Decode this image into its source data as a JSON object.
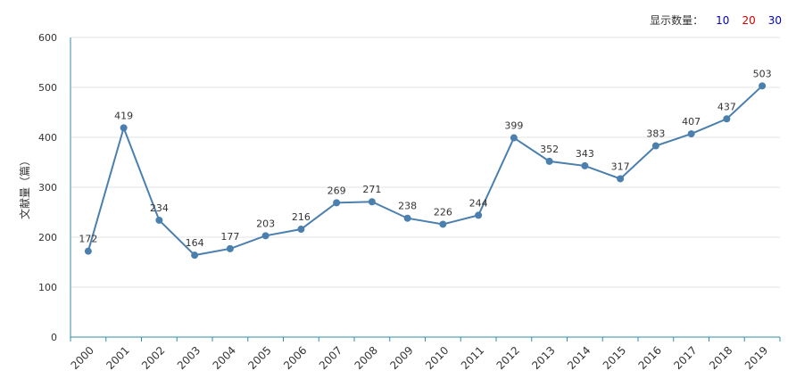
{
  "controls": {
    "label": "显示数量：",
    "options": [
      {
        "label": "10",
        "color": "#0000cc"
      },
      {
        "label": "20",
        "color": "#cc0000"
      },
      {
        "label": "30",
        "color": "#0000cc"
      }
    ]
  },
  "chart_data": {
    "type": "line",
    "ylabel": "文献量（篇）",
    "xlabel": "",
    "title": "",
    "ylim": [
      0,
      600
    ],
    "yticks": [
      0,
      100,
      200,
      300,
      400,
      500,
      600
    ],
    "categories": [
      "2000",
      "2001",
      "2002",
      "2003",
      "2004",
      "2005",
      "2006",
      "2007",
      "2008",
      "2009",
      "2010",
      "2011",
      "2012",
      "2013",
      "2014",
      "2015",
      "2016",
      "2017",
      "2018",
      "2019"
    ],
    "series": [
      {
        "values": [
          172,
          419,
          234,
          164,
          177,
          203,
          216,
          269,
          271,
          238,
          226,
          244,
          399,
          352,
          343,
          317,
          383,
          407,
          437,
          503
        ]
      }
    ],
    "line_color": "#4a7fae",
    "axis_color": "#2f8fa6",
    "grid": true
  }
}
